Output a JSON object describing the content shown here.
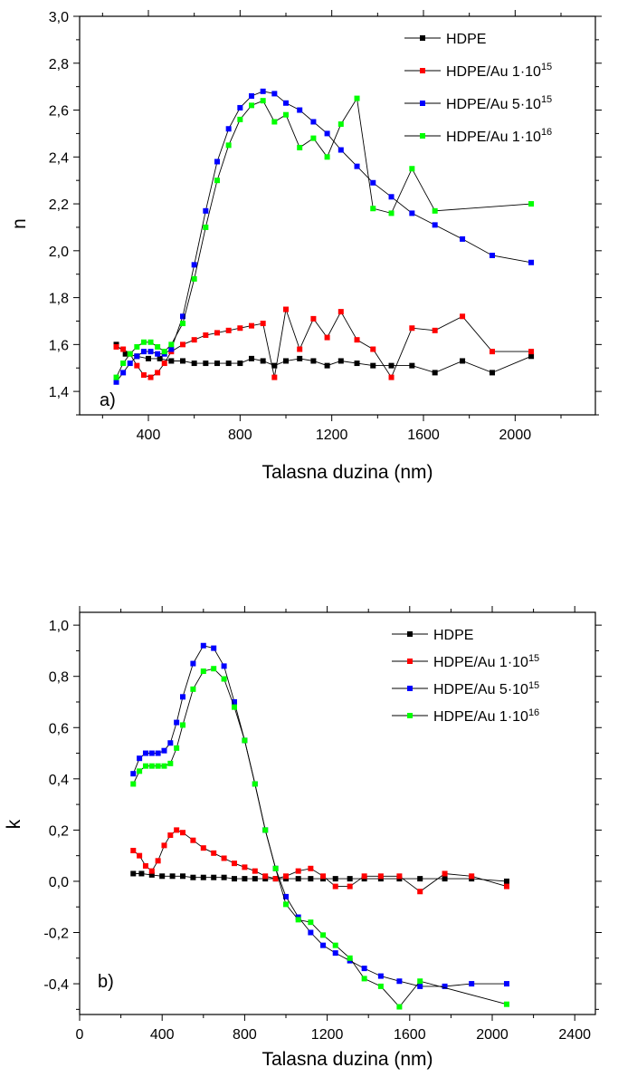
{
  "colors": {
    "HDPE": "#000000",
    "Au1e15": "#ff0000",
    "Au5e15": "#0000ff",
    "Au1e16": "#00ff00"
  },
  "chart_data": [
    {
      "type": "scatter",
      "panel_label": "a)",
      "xlabel": "Talasna duzina (nm)",
      "ylabel": "n",
      "xlim": [
        100,
        2350
      ],
      "ylim": [
        1.3,
        3.0
      ],
      "xticks": [
        400,
        800,
        1200,
        1600,
        2000
      ],
      "xtick_labels": [
        "400",
        "800",
        "1200",
        "1600",
        "2000"
      ],
      "yticks": [
        1.4,
        1.6,
        1.8,
        2.0,
        2.2,
        2.4,
        2.6,
        2.8,
        3.0
      ],
      "ytick_labels": [
        "1,4",
        "1,6",
        "1,8",
        "2,0",
        "2,2",
        "2,4",
        "2,6",
        "2,8",
        "3,0"
      ],
      "legend_position": "top-right",
      "series": [
        {
          "name": "HDPE",
          "name_base": "HDPE",
          "name_sup": "",
          "color_key": "HDPE",
          "x": [
            260,
            300,
            350,
            400,
            450,
            500,
            550,
            600,
            650,
            700,
            750,
            800,
            850,
            900,
            950,
            1000,
            1060,
            1120,
            1180,
            1240,
            1310,
            1380,
            1460,
            1550,
            1650,
            1770,
            1900,
            2070
          ],
          "y": [
            1.6,
            1.56,
            1.55,
            1.54,
            1.54,
            1.53,
            1.53,
            1.52,
            1.52,
            1.52,
            1.52,
            1.52,
            1.54,
            1.53,
            1.51,
            1.53,
            1.54,
            1.53,
            1.51,
            1.53,
            1.52,
            1.51,
            1.51,
            1.51,
            1.48,
            1.53,
            1.48,
            1.55
          ]
        },
        {
          "name": "HDPE/Au 1·10^15",
          "name_base": "HDPE/Au 1·10",
          "name_sup": "15",
          "color_key": "Au1e15",
          "x": [
            260,
            290,
            320,
            350,
            380,
            410,
            440,
            470,
            500,
            550,
            600,
            650,
            700,
            750,
            800,
            850,
            900,
            950,
            1000,
            1060,
            1120,
            1180,
            1240,
            1310,
            1380,
            1460,
            1550,
            1650,
            1770,
            1900,
            2070
          ],
          "y": [
            1.59,
            1.58,
            1.56,
            1.51,
            1.47,
            1.46,
            1.48,
            1.52,
            1.57,
            1.6,
            1.62,
            1.64,
            1.65,
            1.66,
            1.67,
            1.68,
            1.69,
            1.46,
            1.75,
            1.58,
            1.71,
            1.63,
            1.74,
            1.62,
            1.58,
            1.46,
            1.67,
            1.66,
            1.72,
            1.57,
            1.57
          ]
        },
        {
          "name": "HDPE/Au 5·10^15",
          "name_base": "HDPE/Au 5·10",
          "name_sup": "15",
          "color_key": "Au5e15",
          "x": [
            260,
            290,
            320,
            350,
            380,
            410,
            440,
            470,
            500,
            550,
            600,
            650,
            700,
            750,
            800,
            850,
            900,
            950,
            1000,
            1060,
            1120,
            1180,
            1240,
            1310,
            1380,
            1460,
            1550,
            1650,
            1770,
            1900,
            2070
          ],
          "y": [
            1.44,
            1.48,
            1.52,
            1.55,
            1.57,
            1.57,
            1.56,
            1.56,
            1.58,
            1.72,
            1.94,
            2.17,
            2.38,
            2.52,
            2.61,
            2.66,
            2.68,
            2.67,
            2.63,
            2.6,
            2.55,
            2.5,
            2.43,
            2.36,
            2.29,
            2.23,
            2.16,
            2.11,
            2.05,
            1.98,
            1.95
          ]
        },
        {
          "name": "HDPE/Au 1·10^16",
          "name_base": "HDPE/Au 1·10",
          "name_sup": "16",
          "color_key": "Au1e16",
          "x": [
            260,
            290,
            320,
            350,
            380,
            410,
            440,
            470,
            500,
            550,
            600,
            650,
            700,
            750,
            800,
            850,
            900,
            950,
            1000,
            1060,
            1120,
            1180,
            1240,
            1310,
            1380,
            1460,
            1550,
            1650,
            2070
          ],
          "y": [
            1.46,
            1.52,
            1.56,
            1.59,
            1.61,
            1.61,
            1.59,
            1.57,
            1.6,
            1.69,
            1.88,
            2.1,
            2.3,
            2.45,
            2.56,
            2.62,
            2.64,
            2.55,
            2.58,
            2.44,
            2.48,
            2.4,
            2.54,
            2.65,
            2.18,
            2.16,
            2.35,
            2.17,
            2.2
          ]
        }
      ]
    },
    {
      "type": "scatter",
      "panel_label": "b)",
      "xlabel": "Talasna duzina (nm)",
      "ylabel": "k",
      "xlim": [
        0,
        2500
      ],
      "ylim": [
        -0.52,
        1.05
      ],
      "xticks": [
        0,
        400,
        800,
        1200,
        1600,
        2000,
        2400
      ],
      "xtick_labels": [
        "0",
        "400",
        "800",
        "1200",
        "1600",
        "2000",
        "2400"
      ],
      "yticks": [
        -0.4,
        -0.2,
        0.0,
        0.2,
        0.4,
        0.6,
        0.8,
        1.0
      ],
      "ytick_labels": [
        "-0,4",
        "-0,2",
        "0,0",
        "0,2",
        "0,4",
        "0,6",
        "0,8",
        "1,0"
      ],
      "legend_position": "top-right",
      "series": [
        {
          "name": "HDPE",
          "name_base": "HDPE",
          "name_sup": "",
          "color_key": "HDPE",
          "x": [
            260,
            300,
            350,
            400,
            450,
            500,
            550,
            600,
            650,
            700,
            750,
            800,
            850,
            900,
            950,
            1000,
            1060,
            1120,
            1180,
            1240,
            1310,
            1380,
            1460,
            1550,
            1650,
            1770,
            1900,
            2070
          ],
          "y": [
            0.03,
            0.03,
            0.025,
            0.02,
            0.02,
            0.02,
            0.015,
            0.015,
            0.015,
            0.015,
            0.01,
            0.01,
            0.01,
            0.01,
            0.01,
            0.01,
            0.01,
            0.01,
            0.01,
            0.01,
            0.01,
            0.01,
            0.01,
            0.01,
            0.01,
            0.01,
            0.01,
            0.0
          ]
        },
        {
          "name": "HDPE/Au 1·10^15",
          "name_base": "HDPE/Au 1·10",
          "name_sup": "15",
          "color_key": "Au1e15",
          "x": [
            260,
            290,
            320,
            350,
            380,
            410,
            440,
            470,
            500,
            550,
            600,
            650,
            700,
            750,
            800,
            850,
            900,
            950,
            1000,
            1060,
            1120,
            1180,
            1240,
            1310,
            1380,
            1460,
            1550,
            1650,
            1770,
            1900,
            2070
          ],
          "y": [
            0.12,
            0.1,
            0.06,
            0.04,
            0.08,
            0.14,
            0.18,
            0.2,
            0.19,
            0.16,
            0.13,
            0.11,
            0.09,
            0.07,
            0.055,
            0.04,
            0.02,
            0.01,
            0.02,
            0.04,
            0.05,
            0.02,
            -0.02,
            -0.02,
            0.02,
            0.02,
            0.02,
            -0.04,
            0.03,
            0.02,
            -0.02
          ]
        },
        {
          "name": "HDPE/Au 5·10^15",
          "name_base": "HDPE/Au 5·10",
          "name_sup": "15",
          "color_key": "Au5e15",
          "x": [
            260,
            290,
            320,
            350,
            380,
            410,
            440,
            470,
            500,
            550,
            600,
            650,
            700,
            750,
            800,
            850,
            900,
            950,
            1000,
            1060,
            1120,
            1180,
            1240,
            1310,
            1380,
            1460,
            1550,
            1650,
            1770,
            1900,
            2070
          ],
          "y": [
            0.42,
            0.48,
            0.5,
            0.5,
            0.5,
            0.51,
            0.54,
            0.62,
            0.72,
            0.85,
            0.92,
            0.91,
            0.84,
            0.7,
            0.55,
            0.38,
            0.2,
            0.05,
            -0.06,
            -0.14,
            -0.2,
            -0.25,
            -0.28,
            -0.31,
            -0.34,
            -0.37,
            -0.39,
            -0.41,
            -0.41,
            -0.4,
            -0.4
          ]
        },
        {
          "name": "HDPE/Au 1·10^16",
          "name_base": "HDPE/Au 1·10",
          "name_sup": "16",
          "color_key": "Au1e16",
          "x": [
            260,
            290,
            320,
            350,
            380,
            410,
            440,
            470,
            500,
            550,
            600,
            650,
            700,
            750,
            800,
            850,
            900,
            950,
            1000,
            1060,
            1120,
            1180,
            1240,
            1310,
            1380,
            1460,
            1550,
            1650,
            2070
          ],
          "y": [
            0.38,
            0.43,
            0.45,
            0.45,
            0.45,
            0.45,
            0.46,
            0.52,
            0.61,
            0.75,
            0.82,
            0.83,
            0.79,
            0.68,
            0.55,
            0.38,
            0.2,
            0.05,
            -0.09,
            -0.15,
            -0.16,
            -0.21,
            -0.25,
            -0.3,
            -0.38,
            -0.41,
            -0.49,
            -0.39,
            -0.48
          ]
        }
      ]
    }
  ]
}
